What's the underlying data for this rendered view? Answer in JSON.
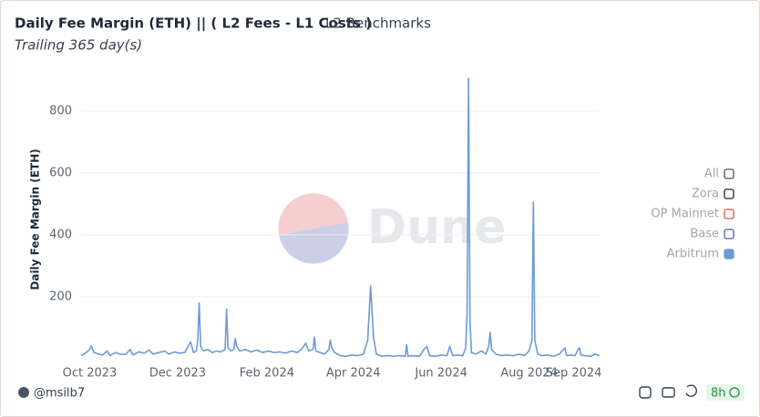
{
  "chart_data": {
    "type": "line",
    "title": "Daily Fee Margin (ETH) || ( L2 Fees - L1 Costs )",
    "category": "L2 Benchmarks",
    "subtitle": "Trailing 365 day(s)",
    "watermark": "Dune",
    "y_label": "Daily Fee Margin (ETH)",
    "x": [
      -6,
      -3,
      0,
      1,
      3,
      6,
      9,
      12,
      14,
      18,
      21,
      25,
      28,
      30,
      34,
      38,
      41,
      44,
      48,
      52,
      55,
      59,
      62,
      66,
      70,
      72,
      74,
      75,
      76,
      77,
      79,
      82,
      85,
      88,
      91,
      94,
      95,
      96,
      98,
      100,
      101,
      102,
      104,
      108,
      112,
      116,
      120,
      124,
      128,
      132,
      136,
      140,
      144,
      147,
      150,
      152,
      155,
      156,
      157,
      160,
      163,
      166,
      167,
      168,
      170,
      174,
      178,
      182,
      186,
      190,
      193,
      195,
      197,
      199,
      203,
      207,
      211,
      215,
      219,
      220,
      221,
      225,
      229,
      232,
      234,
      236,
      240,
      244,
      248,
      250,
      252,
      256,
      259,
      261,
      262,
      263,
      264,
      265,
      268,
      272,
      275,
      277,
      278,
      279,
      282,
      286,
      290,
      294,
      298,
      302,
      305,
      307,
      308,
      309,
      311,
      314,
      318,
      322,
      326,
      330,
      331,
      334,
      337,
      339,
      340,
      341,
      344,
      348,
      351,
      354
    ],
    "series": [
      {
        "name": "Arbitrum",
        "color": "#6d9bd6",
        "values": [
          10,
          18,
          30,
          42,
          20,
          15,
          12,
          25,
          10,
          20,
          15,
          14,
          30,
          12,
          22,
          18,
          28,
          15,
          20,
          25,
          15,
          22,
          18,
          20,
          55,
          20,
          25,
          60,
          180,
          40,
          25,
          30,
          20,
          25,
          22,
          30,
          160,
          35,
          25,
          30,
          65,
          40,
          25,
          30,
          22,
          28,
          20,
          25,
          20,
          22,
          18,
          25,
          20,
          30,
          50,
          25,
          30,
          70,
          25,
          20,
          15,
          30,
          60,
          35,
          20,
          10,
          8,
          12,
          10,
          15,
          60,
          235,
          70,
          15,
          8,
          10,
          8,
          10,
          8,
          45,
          8,
          10,
          8,
          30,
          40,
          10,
          8,
          12,
          10,
          40,
          10,
          12,
          10,
          35,
          150,
          905,
          120,
          20,
          15,
          25,
          15,
          40,
          85,
          30,
          15,
          10,
          12,
          10,
          15,
          10,
          25,
          60,
          505,
          60,
          15,
          10,
          12,
          8,
          15,
          35,
          10,
          12,
          10,
          30,
          35,
          12,
          10,
          8,
          15,
          10
        ]
      }
    ],
    "legend_items": [
      {
        "name": "All",
        "color": "#4b5563"
      },
      {
        "name": "Zora",
        "color": "#1f2937"
      },
      {
        "name": "OP Mainnet",
        "color": "#d9534f"
      },
      {
        "name": "Base",
        "color": "#4a5fc1"
      }
    ],
    "xlim": [
      -6,
      354
    ],
    "xticks": [
      {
        "value": 0,
        "label": "Oct 2023"
      },
      {
        "value": 61,
        "label": "Dec 2023"
      },
      {
        "value": 123,
        "label": "Feb 2024"
      },
      {
        "value": 183,
        "label": "Apr 2024"
      },
      {
        "value": 244,
        "label": "Jun 2024"
      },
      {
        "value": 305,
        "label": "Aug 2024"
      },
      {
        "value": 336,
        "label": "Sep 2024"
      }
    ],
    "ylim": [
      0,
      920
    ],
    "yticks": [
      200,
      400,
      600,
      800
    ],
    "grid": true
  },
  "footer": {
    "author": "@msilb7",
    "age": "8h"
  }
}
